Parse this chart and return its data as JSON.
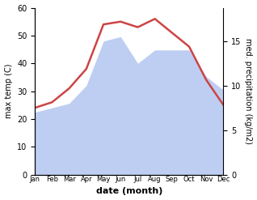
{
  "months": [
    "Jan",
    "Feb",
    "Mar",
    "Apr",
    "May",
    "Jun",
    "Jul",
    "Aug",
    "Sep",
    "Oct",
    "Nov",
    "Dec"
  ],
  "temp_max": [
    24,
    26,
    31,
    38,
    54,
    55,
    53,
    56,
    51,
    46,
    34,
    25
  ],
  "precip": [
    7,
    7.5,
    8,
    10,
    15,
    15.5,
    12.5,
    14,
    14,
    14,
    11,
    9.5
  ],
  "temp_ylim": [
    0,
    60
  ],
  "precip_ylim": [
    0,
    18.75
  ],
  "temp_yticks": [
    0,
    10,
    20,
    30,
    40,
    50,
    60
  ],
  "precip_yticks": [
    0,
    5,
    10,
    15
  ],
  "temp_color": "#cc4444",
  "precip_fill_color": "#b3c6f0",
  "bg_color": "#ffffff",
  "ylabel_left": "max temp (C)",
  "ylabel_right": "med. precipitation (kg/m2)",
  "xlabel": "date (month)"
}
